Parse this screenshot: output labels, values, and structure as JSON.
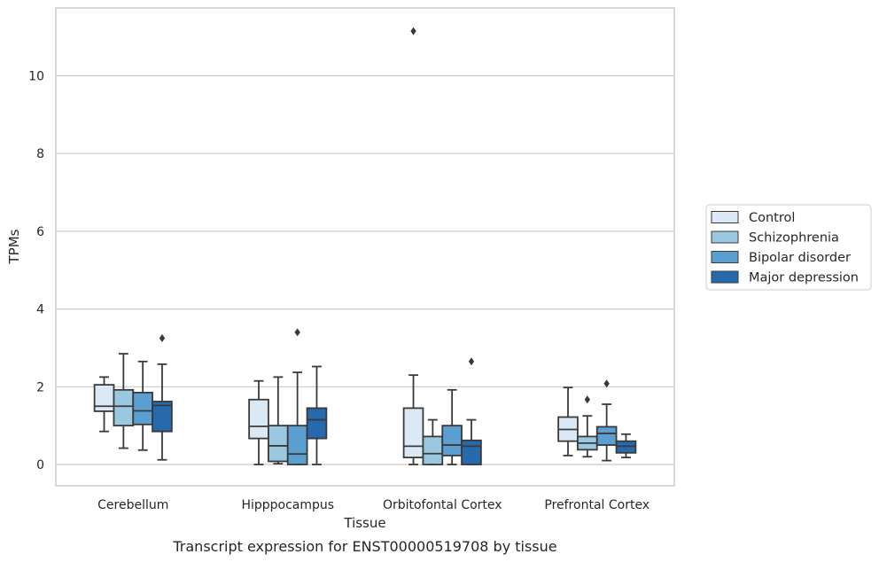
{
  "chart_data": {
    "type": "boxplot",
    "caption": "Transcript expression for ENST00000519708 by tissue",
    "xlabel": "Tissue",
    "ylabel": "TPMs",
    "ylim": [
      -0.55,
      11.7
    ],
    "yticks": [
      0,
      2,
      4,
      6,
      8,
      10
    ],
    "grid": "horizontal",
    "legend_position": "right",
    "categories": [
      "Cerebellum",
      "Hipppocampus",
      "Orbitofontal Cortex",
      "Prefrontal Cortex"
    ],
    "series": [
      {
        "name": "Control",
        "color": "#dbe9f6",
        "boxes": [
          {
            "whislo": 0.85,
            "q1": 1.37,
            "med": 1.5,
            "q3": 2.05,
            "whishi": 2.25,
            "fliers": []
          },
          {
            "whislo": 0.0,
            "q1": 0.67,
            "med": 0.98,
            "q3": 1.67,
            "whishi": 2.15,
            "fliers": []
          },
          {
            "whislo": 0.0,
            "q1": 0.18,
            "med": 0.47,
            "q3": 1.45,
            "whishi": 2.3,
            "fliers": [
              11.15
            ]
          },
          {
            "whislo": 0.23,
            "q1": 0.6,
            "med": 0.9,
            "q3": 1.22,
            "whishi": 1.98,
            "fliers": []
          }
        ]
      },
      {
        "name": "Schizophrenia",
        "color": "#9ac8e0",
        "boxes": [
          {
            "whislo": 0.42,
            "q1": 1.0,
            "med": 1.5,
            "q3": 1.92,
            "whishi": 2.85,
            "fliers": []
          },
          {
            "whislo": 0.02,
            "q1": 0.08,
            "med": 0.48,
            "q3": 1.0,
            "whishi": 2.25,
            "fliers": []
          },
          {
            "whislo": 0.0,
            "q1": 0.0,
            "med": 0.28,
            "q3": 0.72,
            "whishi": 1.15,
            "fliers": []
          },
          {
            "whislo": 0.2,
            "q1": 0.38,
            "med": 0.55,
            "q3": 0.72,
            "whishi": 1.25,
            "fliers": [
              1.67
            ]
          }
        ]
      },
      {
        "name": "Bipolar disorder",
        "color": "#5a9fcf",
        "boxes": [
          {
            "whislo": 0.37,
            "q1": 1.03,
            "med": 1.38,
            "q3": 1.85,
            "whishi": 2.65,
            "fliers": []
          },
          {
            "whislo": 0.0,
            "q1": 0.0,
            "med": 0.27,
            "q3": 1.0,
            "whishi": 2.37,
            "fliers": [
              3.4
            ]
          },
          {
            "whislo": 0.0,
            "q1": 0.23,
            "med": 0.5,
            "q3": 1.0,
            "whishi": 1.92,
            "fliers": []
          },
          {
            "whislo": 0.1,
            "q1": 0.5,
            "med": 0.8,
            "q3": 0.97,
            "whishi": 1.55,
            "fliers": [
              2.08
            ]
          }
        ]
      },
      {
        "name": "Major depression",
        "color": "#2669ad",
        "boxes": [
          {
            "whislo": 0.12,
            "q1": 0.85,
            "med": 1.52,
            "q3": 1.62,
            "whishi": 2.58,
            "fliers": [
              3.25
            ]
          },
          {
            "whislo": 0.0,
            "q1": 0.67,
            "med": 1.15,
            "q3": 1.45,
            "whishi": 2.52,
            "fliers": []
          },
          {
            "whislo": 0.0,
            "q1": 0.0,
            "med": 0.47,
            "q3": 0.62,
            "whishi": 1.15,
            "fliers": [
              2.65
            ]
          },
          {
            "whislo": 0.18,
            "q1": 0.3,
            "med": 0.47,
            "q3": 0.6,
            "whishi": 0.78,
            "fliers": []
          }
        ]
      }
    ]
  }
}
